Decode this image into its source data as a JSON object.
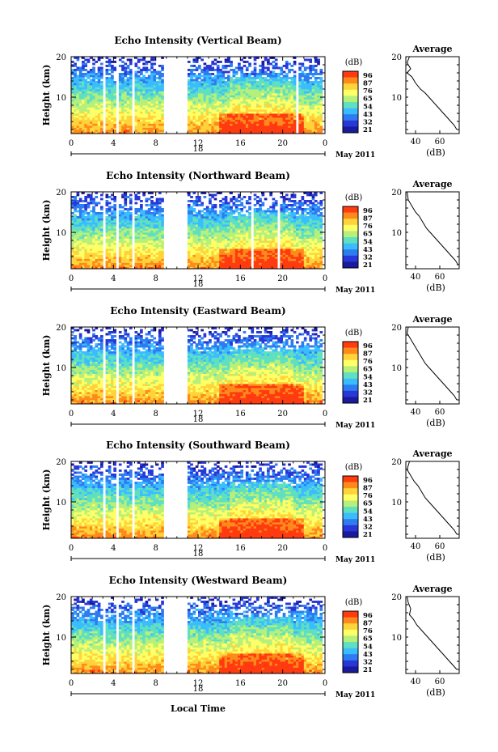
{
  "figure": {
    "date_label": "May 2011",
    "x_axis_label": "Local Time",
    "colorbar_unit": "(dB)",
    "colorbar_ticks": [
      "96",
      "87",
      "76",
      "65",
      "54",
      "43",
      "32",
      "21"
    ],
    "colorbar_colors": [
      "#ff3b10",
      "#ff8a1c",
      "#ffd43a",
      "#ffff66",
      "#b6f07a",
      "#5fe0c0",
      "#3bbcff",
      "#2d7cf0",
      "#2838d8",
      "#1a1a9c"
    ],
    "avg_title": "Average",
    "avg_xlabel": "(dB)",
    "y_label": "Height (km)"
  },
  "chart_data": [
    {
      "type": "heatmap",
      "title": "Echo Intensity (Vertical Beam)",
      "ylabel": "Height (km)",
      "xlabel": "",
      "x_tick_labels": [
        "0",
        "4",
        "8",
        "12",
        "16",
        "20",
        "0"
      ],
      "x_range": [
        0,
        24
      ],
      "y_tick_labels": [
        "10",
        "20"
      ],
      "ylim": [
        1,
        20
      ],
      "date_labels": [
        "18",
        "May 2011"
      ],
      "colorbar": {
        "unit": "(dB)",
        "ticks": [
          96,
          87,
          76,
          65,
          54,
          43,
          32,
          21
        ]
      },
      "data_gaps_hours": [
        [
          3.0,
          3.3
        ],
        [
          4.3,
          4.5
        ],
        [
          5.7,
          6.0
        ],
        [
          8.8,
          11.0
        ],
        [
          21.2,
          21.5
        ],
        [
          23.7,
          24.0
        ]
      ],
      "average_profile": {
        "title": "Average",
        "xlabel": "(dB)",
        "x_ticks": [
          40,
          60
        ],
        "y_ticks": [
          10,
          20
        ],
        "x": [
          35,
          33,
          36,
          33,
          37,
          40,
          44,
          48,
          51,
          54,
          57,
          60,
          63,
          66,
          69,
          72,
          74
        ],
        "y": [
          20,
          18.5,
          17,
          16,
          15,
          13.5,
          12,
          11,
          10,
          9,
          8,
          7,
          6,
          5,
          4,
          3,
          2
        ]
      }
    },
    {
      "type": "heatmap",
      "title": "Echo Intensity (Northward Beam)",
      "ylabel": "Height (km)",
      "xlabel": "",
      "x_tick_labels": [
        "0",
        "4",
        "8",
        "12",
        "16",
        "20",
        "0"
      ],
      "x_range": [
        0,
        24
      ],
      "y_tick_labels": [
        "10",
        "20"
      ],
      "ylim": [
        1,
        20
      ],
      "date_labels": [
        "18",
        "May 2011"
      ],
      "colorbar": {
        "unit": "(dB)",
        "ticks": [
          96,
          87,
          76,
          65,
          54,
          43,
          32,
          21
        ]
      },
      "data_gaps_hours": [
        [
          3.0,
          3.3
        ],
        [
          4.3,
          4.5
        ],
        [
          5.7,
          6.0
        ],
        [
          8.8,
          11.0
        ],
        [
          17.0,
          17.2
        ],
        [
          19.5,
          19.7
        ],
        [
          23.7,
          24.0
        ]
      ],
      "average_profile": {
        "title": "Average",
        "xlabel": "(dB)",
        "x_ticks": [
          40,
          60
        ],
        "y_ticks": [
          10,
          20
        ],
        "x": [
          33,
          34,
          37,
          40,
          43,
          46,
          49,
          52,
          55,
          58,
          61,
          64,
          67,
          70,
          73,
          75
        ],
        "y": [
          20,
          18,
          16.5,
          15,
          14,
          12.5,
          11,
          10,
          9,
          8,
          7,
          6,
          5,
          4,
          3,
          2
        ]
      }
    },
    {
      "type": "heatmap",
      "title": "Echo Intensity (Eastward Beam)",
      "ylabel": "Height (km)",
      "xlabel": "",
      "x_tick_labels": [
        "0",
        "4",
        "8",
        "12",
        "16",
        "20",
        "0"
      ],
      "x_range": [
        0,
        24
      ],
      "y_tick_labels": [
        "10",
        "20"
      ],
      "ylim": [
        1,
        20
      ],
      "date_labels": [
        "18",
        "May 2011"
      ],
      "colorbar": {
        "unit": "(dB)",
        "ticks": [
          96,
          87,
          76,
          65,
          54,
          43,
          32,
          21
        ]
      },
      "data_gaps_hours": [
        [
          3.0,
          3.3
        ],
        [
          4.3,
          4.5
        ],
        [
          5.7,
          6.0
        ],
        [
          8.8,
          11.0
        ],
        [
          23.7,
          24.0
        ]
      ],
      "average_profile": {
        "title": "Average",
        "xlabel": "(dB)",
        "x_ticks": [
          40,
          60
        ],
        "y_ticks": [
          10,
          20
        ],
        "x": [
          34,
          33,
          36,
          39,
          42,
          45,
          48,
          51,
          54,
          57,
          60,
          63,
          66,
          69,
          72,
          74
        ],
        "y": [
          20,
          18.5,
          17,
          15.5,
          14,
          12.5,
          11,
          10,
          9,
          8,
          7,
          6,
          5,
          4,
          3,
          2
        ]
      }
    },
    {
      "type": "heatmap",
      "title": "Echo Intensity (Southward Beam)",
      "ylabel": "Height (km)",
      "xlabel": "",
      "x_tick_labels": [
        "0",
        "4",
        "8",
        "12",
        "16",
        "20",
        "0"
      ],
      "x_range": [
        0,
        24
      ],
      "y_tick_labels": [
        "10",
        "20"
      ],
      "ylim": [
        1,
        20
      ],
      "date_labels": [
        "18",
        "May 2011"
      ],
      "colorbar": {
        "unit": "(dB)",
        "ticks": [
          96,
          87,
          76,
          65,
          54,
          43,
          32,
          21
        ]
      },
      "data_gaps_hours": [
        [
          3.0,
          3.3
        ],
        [
          4.3,
          4.5
        ],
        [
          5.7,
          6.0
        ],
        [
          8.8,
          11.0
        ],
        [
          23.7,
          24.0
        ]
      ],
      "average_profile": {
        "title": "Average",
        "xlabel": "(dB)",
        "x_ticks": [
          40,
          60
        ],
        "y_ticks": [
          10,
          20
        ],
        "x": [
          35,
          33,
          36,
          39,
          42,
          45,
          48,
          51,
          54,
          57,
          60,
          63,
          66,
          69,
          72,
          74
        ],
        "y": [
          20,
          18,
          16.5,
          15,
          14,
          12.5,
          11,
          10,
          9,
          8,
          7,
          6,
          5,
          4,
          3,
          2
        ]
      }
    },
    {
      "type": "heatmap",
      "title": "Echo Intensity (Westward Beam)",
      "ylabel": "Height (km)",
      "xlabel": "Local Time",
      "x_tick_labels": [
        "0",
        "4",
        "8",
        "12",
        "16",
        "20",
        "0"
      ],
      "x_range": [
        0,
        24
      ],
      "y_tick_labels": [
        "10",
        "20"
      ],
      "ylim": [
        1,
        20
      ],
      "date_labels": [
        "18",
        "May 2011"
      ],
      "colorbar": {
        "unit": "(dB)",
        "ticks": [
          96,
          87,
          76,
          65,
          54,
          43,
          32,
          21
        ]
      },
      "data_gaps_hours": [
        [
          3.0,
          3.3
        ],
        [
          4.3,
          4.5
        ],
        [
          5.7,
          6.0
        ],
        [
          8.8,
          11.0
        ],
        [
          23.7,
          24.0
        ]
      ],
      "average_profile": {
        "title": "Average",
        "xlabel": "(dB)",
        "x_ticks": [
          40,
          60
        ],
        "y_ticks": [
          10,
          20
        ],
        "x": [
          33,
          34,
          36,
          35,
          38,
          41,
          44,
          47,
          50,
          53,
          56,
          59,
          62,
          65,
          68,
          71,
          74
        ],
        "y": [
          20,
          18.5,
          17,
          15.5,
          14.5,
          13,
          12,
          11,
          10,
          9,
          8,
          7,
          6,
          5,
          4,
          3,
          2
        ]
      }
    }
  ]
}
